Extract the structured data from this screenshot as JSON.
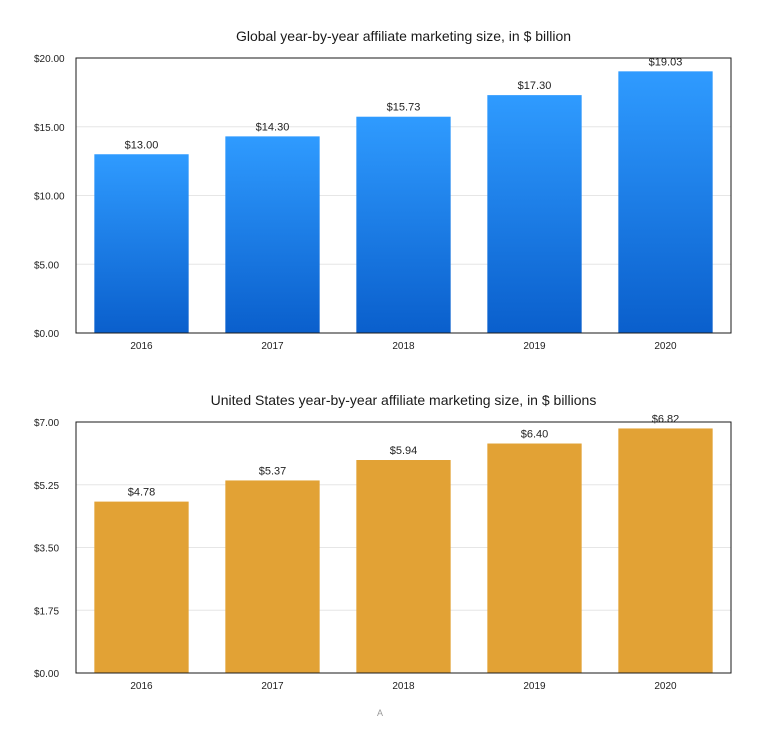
{
  "chart_data": [
    {
      "type": "bar",
      "title": "Global year-by-year affiliate marketing size, in $ billion",
      "xlabel": "",
      "ylabel": "",
      "categories": [
        "2016",
        "2017",
        "2018",
        "2019",
        "2020"
      ],
      "values": [
        13.0,
        14.3,
        15.73,
        17.3,
        19.03
      ],
      "data_labels": [
        "$13.00",
        "$14.30",
        "$15.73",
        "$17.30",
        "$19.03"
      ],
      "ylim": [
        0,
        20
      ],
      "yticks": [
        0,
        5,
        10,
        15,
        20
      ],
      "ytick_labels": [
        "$0.00",
        "$5.00",
        "$10.00",
        "$15.00",
        "$20.00"
      ],
      "grid": true,
      "legend": "none",
      "colors": {
        "bar_top": "#2f9bff",
        "bar_bottom": "#0a5fcc"
      }
    },
    {
      "type": "bar",
      "title": "United States year-by-year affiliate marketing size, in $ billions",
      "xlabel": "",
      "ylabel": "",
      "categories": [
        "2016",
        "2017",
        "2018",
        "2019",
        "2020"
      ],
      "values": [
        4.78,
        5.37,
        5.94,
        6.4,
        6.82
      ],
      "data_labels": [
        "$4.78",
        "$5.37",
        "$5.94",
        "$6.40",
        "$6.82"
      ],
      "ylim": [
        0,
        7
      ],
      "yticks": [
        0,
        1.75,
        3.5,
        5.25,
        7
      ],
      "ytick_labels": [
        "$0.00",
        "$1.75",
        "$3.50",
        "$5.25",
        "$7.00"
      ],
      "grid": true,
      "legend": "none",
      "colors": {
        "bar_top": "#e2a235",
        "bar_bottom": "#e2a235"
      }
    }
  ],
  "footer": {
    "mark": "A"
  }
}
